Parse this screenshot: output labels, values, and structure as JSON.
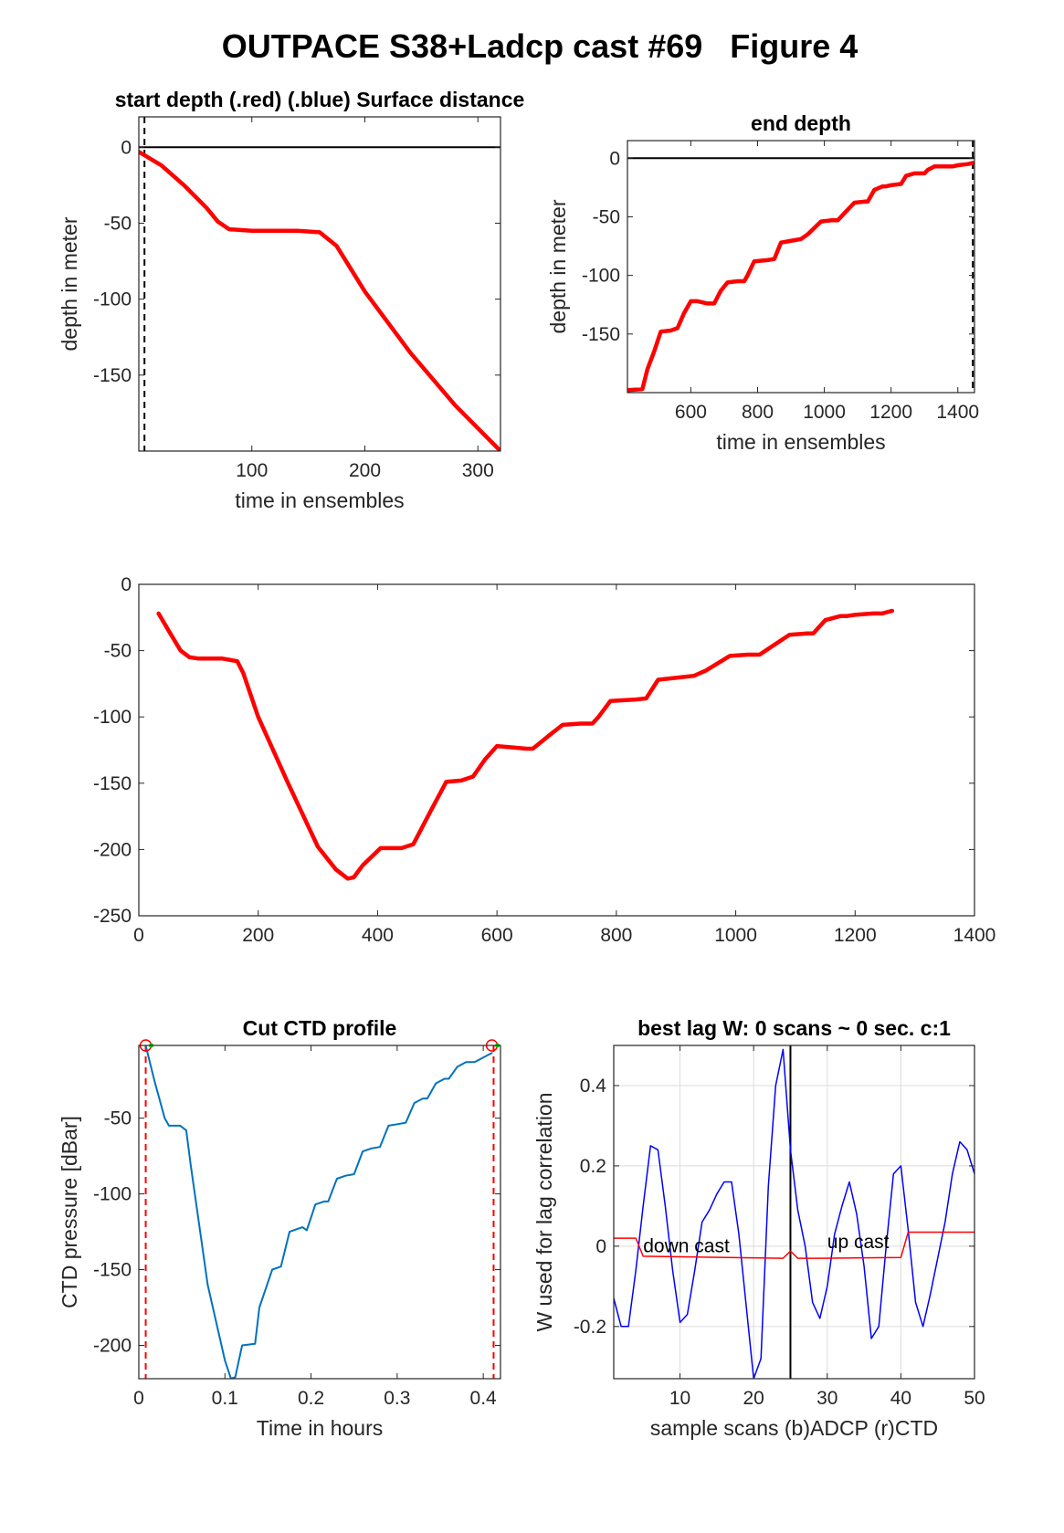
{
  "figure": {
    "title": "OUTPACE S38+Ladcp cast #69   Figure 4"
  },
  "chart_data": [
    {
      "id": "start-depth",
      "type": "line",
      "title": "start depth (.red) (.blue) Surface distance",
      "xlabel": "time in ensembles",
      "ylabel": "depth in meter",
      "xlim": [
        0,
        320
      ],
      "ylim": [
        -200,
        20
      ],
      "xticks": [
        100,
        200,
        300
      ],
      "yticks": [
        0,
        -50,
        -100,
        -150
      ],
      "grid": false,
      "hlines": [
        {
          "y": 0,
          "color": "#000000",
          "dash": false
        }
      ],
      "vlines": [
        {
          "x": 5,
          "color": "#000000",
          "dash": true
        }
      ],
      "series": [
        {
          "color": "#ff0000",
          "width": 4.5,
          "x": [
            0,
            20,
            40,
            60,
            70,
            80,
            100,
            140,
            160,
            175,
            200,
            240,
            280,
            320
          ],
          "y": [
            -3,
            -12,
            -25,
            -40,
            -49,
            -54,
            -55,
            -55,
            -56,
            -65,
            -95,
            -135,
            -170,
            -200
          ]
        }
      ]
    },
    {
      "id": "end-depth",
      "type": "line",
      "title": "end depth",
      "xlabel": "time in ensembles",
      "ylabel": "depth in meter",
      "xlim": [
        410,
        1450
      ],
      "ylim": [
        -200,
        15
      ],
      "xticks": [
        600,
        800,
        1000,
        1200,
        1400
      ],
      "yticks": [
        0,
        -50,
        -100,
        -150
      ],
      "grid": false,
      "hlines": [
        {
          "y": 0,
          "color": "#000000",
          "dash": false
        }
      ],
      "vlines": [
        {
          "x": 1445,
          "color": "#000000",
          "dash": true
        }
      ],
      "series": [
        {
          "color": "#ff0000",
          "width": 4.5,
          "x": [
            410,
            455,
            470,
            490,
            510,
            540,
            560,
            580,
            600,
            620,
            650,
            670,
            690,
            710,
            740,
            760,
            770,
            790,
            830,
            850,
            870,
            910,
            930,
            950,
            990,
            1020,
            1040,
            1060,
            1090,
            1120,
            1130,
            1150,
            1175,
            1185,
            1200,
            1230,
            1245,
            1270,
            1300,
            1310,
            1330,
            1370,
            1385,
            1400,
            1430,
            1445
          ],
          "y": [
            -198,
            -197,
            -180,
            -165,
            -148,
            -147,
            -145,
            -132,
            -122,
            -122,
            -124,
            -124,
            -113,
            -106,
            -105,
            -105,
            -100,
            -88,
            -87,
            -86,
            -72,
            -70,
            -69,
            -65,
            -54,
            -53,
            -53,
            -47,
            -38,
            -37,
            -37,
            -27,
            -24,
            -24,
            -23,
            -22,
            -15,
            -13,
            -13,
            -10,
            -7,
            -7,
            -7,
            -6,
            -5,
            -4
          ]
        }
      ]
    },
    {
      "id": "full-depth",
      "type": "line",
      "title": "",
      "xlabel": "",
      "ylabel": "",
      "xlim": [
        0,
        1400
      ],
      "ylim": [
        -250,
        0
      ],
      "xticks": [
        0,
        200,
        400,
        600,
        800,
        1000,
        1200,
        1400
      ],
      "yticks": [
        0,
        -50,
        -100,
        -150,
        -200,
        -250
      ],
      "grid": false,
      "series": [
        {
          "color": "#ff0000",
          "width": 4.5,
          "x": [
            33,
            50,
            70,
            85,
            100,
            140,
            165,
            175,
            200,
            250,
            300,
            330,
            350,
            360,
            375,
            405,
            440,
            460,
            490,
            515,
            540,
            560,
            580,
            600,
            650,
            660,
            690,
            710,
            740,
            760,
            770,
            790,
            830,
            850,
            870,
            910,
            930,
            950,
            990,
            1020,
            1040,
            1060,
            1090,
            1120,
            1130,
            1150,
            1175,
            1185,
            1200,
            1230,
            1245,
            1262
          ],
          "y": [
            -22,
            -35,
            -50,
            -55,
            -56,
            -56,
            -58,
            -67,
            -100,
            -150,
            -198,
            -215,
            -222,
            -221,
            -212,
            -199,
            -199,
            -196,
            -170,
            -149,
            -148,
            -145,
            -132,
            -122,
            -124,
            -124,
            -113,
            -106,
            -105,
            -105,
            -100,
            -88,
            -87,
            -86,
            -72,
            -70,
            -69,
            -65,
            -54,
            -53,
            -53,
            -47,
            -38,
            -37,
            -37,
            -27,
            -24,
            -24,
            -23,
            -22,
            -22,
            -20
          ]
        }
      ]
    },
    {
      "id": "cut-ctd",
      "type": "line",
      "title": "Cut CTD profile",
      "xlabel": "Time in hours",
      "ylabel": "CTD pressure [dBar]",
      "xlim": [
        0,
        0.42
      ],
      "ylim": [
        -222,
        -2
      ],
      "xticks": [
        0,
        0.1,
        0.2,
        0.3,
        0.4
      ],
      "yticks": [
        -50,
        -100,
        -150,
        -200
      ],
      "grid": false,
      "vlines": [
        {
          "x": 0.008,
          "color": "#ff0000",
          "dash": true
        },
        {
          "x": 0.412,
          "color": "#ff0000",
          "dash": true
        }
      ],
      "markers": [
        {
          "x": 0.008,
          "y": -2,
          "color": "#ff0000"
        },
        {
          "x": 0.41,
          "y": -2,
          "color": "#ff0000"
        }
      ],
      "series": [
        {
          "color": "#0072bd",
          "width": 2,
          "x": [
            0.008,
            0.018,
            0.03,
            0.035,
            0.048,
            0.055,
            0.06,
            0.08,
            0.1,
            0.107,
            0.112,
            0.12,
            0.135,
            0.14,
            0.155,
            0.165,
            0.175,
            0.19,
            0.195,
            0.205,
            0.215,
            0.22,
            0.23,
            0.24,
            0.25,
            0.26,
            0.27,
            0.28,
            0.29,
            0.3,
            0.31,
            0.32,
            0.33,
            0.335,
            0.345,
            0.355,
            0.36,
            0.37,
            0.38,
            0.39,
            0.4,
            0.41
          ],
          "y": [
            -2,
            -25,
            -50,
            -55,
            -55,
            -58,
            -80,
            -160,
            -210,
            -222,
            -221,
            -200,
            -199,
            -175,
            -150,
            -148,
            -125,
            -122,
            -124,
            -107,
            -105,
            -105,
            -90,
            -88,
            -87,
            -72,
            -70,
            -69,
            -55,
            -54,
            -53,
            -40,
            -37,
            -37,
            -27,
            -24,
            -24,
            -16,
            -13,
            -13,
            -10,
            -7
          ]
        }
      ]
    },
    {
      "id": "best-lag",
      "type": "line",
      "title": "best lag W: 0 scans ~ 0 sec.  c:1",
      "xlabel": "sample scans (b)ADCP (r)CTD",
      "ylabel": "W used for lag correlation",
      "xlim": [
        1,
        50
      ],
      "ylim": [
        -0.33,
        0.5
      ],
      "xticks": [
        10,
        20,
        30,
        40,
        50
      ],
      "yticks": [
        0.4,
        0.2,
        0,
        -0.2
      ],
      "grid": true,
      "vlines": [
        {
          "x": 25,
          "color": "#000000",
          "dash": false
        }
      ],
      "annotations": [
        {
          "text": "down cast",
          "x": 5,
          "y": -0.015
        },
        {
          "text": "up cast",
          "x": 30,
          "y": -0.005
        }
      ],
      "series": [
        {
          "color": "#0000ff",
          "width": 1.5,
          "x": [
            1,
            2,
            3,
            4,
            5,
            6,
            7,
            8,
            9,
            10,
            11,
            12,
            13,
            14,
            15,
            16,
            17,
            18,
            19,
            20,
            21,
            22,
            23,
            24,
            25,
            26,
            27,
            28,
            29,
            30,
            31,
            32,
            33,
            34,
            35,
            36,
            37,
            38,
            39,
            40,
            41,
            42,
            43,
            44,
            45,
            46,
            47,
            48,
            49,
            50
          ],
          "y": [
            -0.13,
            -0.2,
            -0.2,
            -0.06,
            0.1,
            0.25,
            0.24,
            0.1,
            -0.06,
            -0.19,
            -0.17,
            -0.06,
            0.06,
            0.09,
            0.13,
            0.16,
            0.16,
            0.03,
            -0.15,
            -0.33,
            -0.28,
            0.15,
            0.4,
            0.49,
            0.24,
            0.09,
            0.0,
            -0.14,
            -0.18,
            -0.1,
            0.03,
            0.1,
            0.16,
            0.08,
            -0.05,
            -0.23,
            -0.2,
            0.0,
            0.18,
            0.2,
            0.04,
            -0.14,
            -0.2,
            -0.12,
            -0.03,
            0.06,
            0.18,
            0.26,
            0.24,
            0.18
          ]
        },
        {
          "color": "#ff0000",
          "width": 1.5,
          "x": [
            1,
            4,
            5,
            24,
            25,
            26,
            29,
            40,
            41,
            50
          ],
          "y": [
            0.02,
            0.02,
            -0.025,
            -0.03,
            -0.012,
            -0.03,
            -0.03,
            -0.028,
            0.035,
            0.035
          ]
        }
      ]
    }
  ]
}
